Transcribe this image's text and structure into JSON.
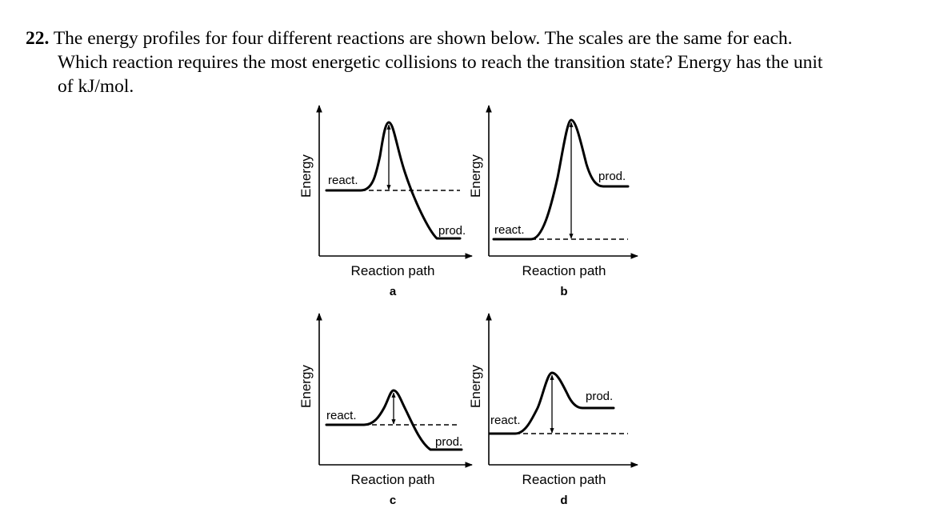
{
  "question": {
    "number": "22.",
    "line1": "The energy profiles for four different reactions are shown below.  The scales are the same for each.",
    "line2": "Which reaction requires the most energetic collisions to reach the transition state?  Energy has the unit",
    "line3": "of kJ/mol."
  },
  "panels": [
    {
      "letter": "a",
      "y_label": "Energy",
      "x_label": "Reaction path",
      "reactant_label": "react.",
      "product_label": "prod."
    },
    {
      "letter": "b",
      "y_label": "Energy",
      "x_label": "Reaction path",
      "reactant_label": "react.",
      "product_label": "prod."
    },
    {
      "letter": "c",
      "y_label": "Energy",
      "x_label": "Reaction path",
      "reactant_label": "react.",
      "product_label": "prod."
    },
    {
      "letter": "d",
      "y_label": "Energy",
      "x_label": "Reaction path",
      "reactant_label": "react.",
      "product_label": "prod."
    }
  ]
}
